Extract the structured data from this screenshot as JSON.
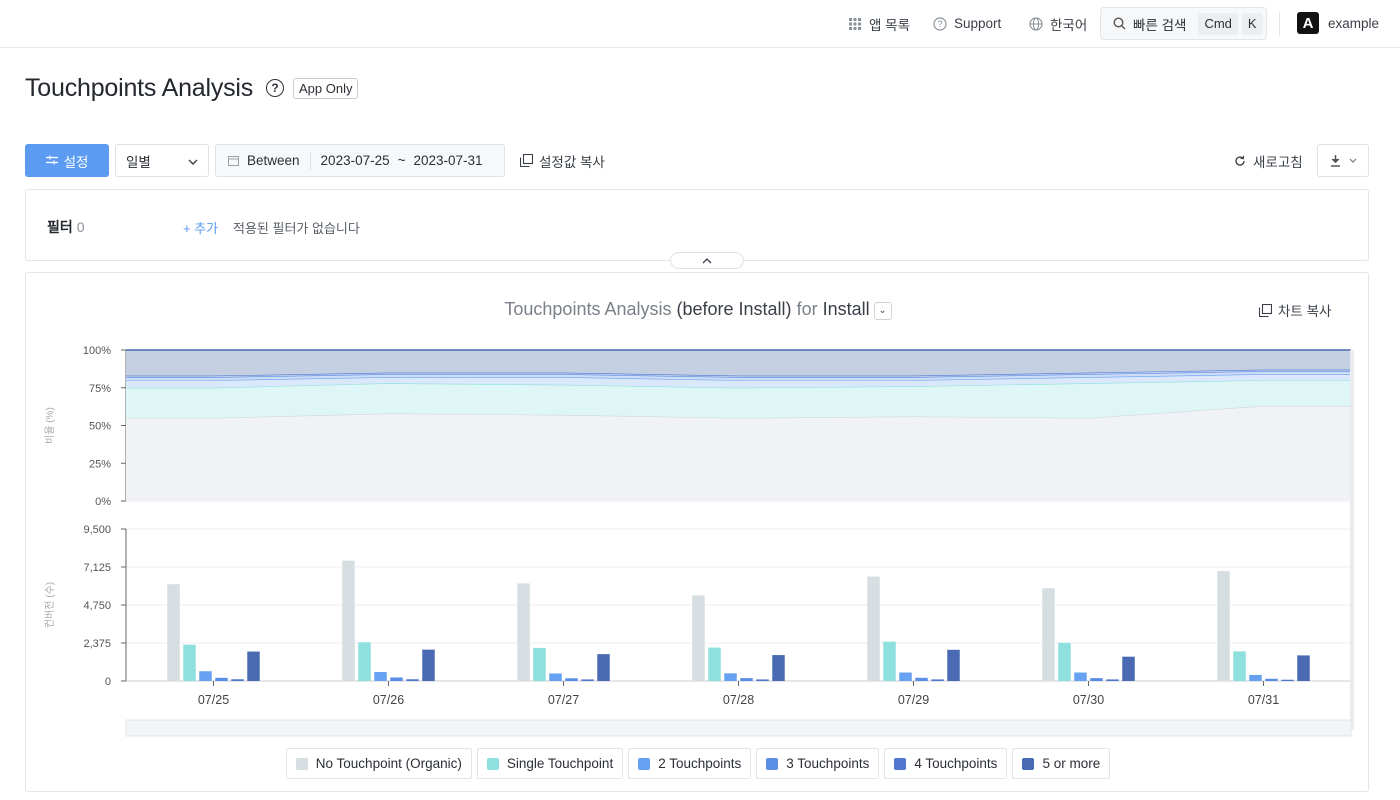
{
  "topbar": {
    "app_list": "앱 목록",
    "support": "Support",
    "language": "한국어",
    "quick_search": "빠른 검색",
    "shortcut_mod": "Cmd",
    "shortcut_key": "K",
    "logo_letter": "A",
    "account": "example"
  },
  "page": {
    "title": "Touchpoints Analysis",
    "badge": "App Only"
  },
  "toolbar": {
    "settings": "설정",
    "period": "일별",
    "range_mode": "Between",
    "start_date": "2023-07-25",
    "tilde": "~",
    "end_date": "2023-07-31",
    "copy_settings": "설정값 복사",
    "refresh": "새로고침"
  },
  "filter": {
    "label": "필터",
    "count": "0",
    "add": "+ 추가",
    "empty": "적용된 필터가 없습니다"
  },
  "chart_header": {
    "title_part1": "Touchpoints Analysis ",
    "title_part2": "(before Install)",
    "title_part3": " for ",
    "title_part4": "Install",
    "copy": "차트 복사"
  },
  "colors": {
    "organic": "#d7dee2",
    "single": "#8de0dd",
    "two": "#66a1f2",
    "three": "#5a8ee6",
    "four": "#5078d0",
    "five": "#4a6bb3"
  },
  "chart_data": [
    {
      "type": "area",
      "stacked": true,
      "percent": true,
      "ylabel": "비율 (%)",
      "yticks": [
        "100%",
        "75%",
        "50%",
        "25%",
        "0%"
      ],
      "ylim": [
        0,
        100
      ],
      "categories": [
        "07/25",
        "07/26",
        "07/27",
        "07/28",
        "07/29",
        "07/30",
        "07/31"
      ],
      "series": [
        {
          "name": "No Touchpoint (Organic)",
          "values": [
            55,
            58,
            57,
            55,
            56,
            55,
            63
          ]
        },
        {
          "name": "Single Touchpoint",
          "values": [
            20,
            20,
            20,
            20,
            20,
            23,
            17
          ]
        },
        {
          "name": "2 Touchpoints",
          "values": [
            5,
            4,
            5,
            5,
            4,
            4,
            4
          ]
        },
        {
          "name": "3 Touchpoints",
          "values": [
            2,
            2,
            2,
            2,
            2,
            2,
            2
          ]
        },
        {
          "name": "4 Touchpoints",
          "values": [
            1,
            1,
            1,
            1,
            1,
            1,
            1
          ]
        },
        {
          "name": "5 or more",
          "values": [
            17,
            15,
            15,
            17,
            17,
            15,
            13
          ]
        }
      ]
    },
    {
      "type": "bar",
      "ylabel": "컨버전 (수)",
      "yticks": [
        "9,500",
        "7,125",
        "4,750",
        "2,375",
        "0"
      ],
      "ylim": [
        0,
        9500
      ],
      "categories": [
        "07/25",
        "07/26",
        "07/27",
        "07/28",
        "07/29",
        "07/30",
        "07/31"
      ],
      "series": [
        {
          "name": "No Touchpoint (Organic)",
          "values": [
            6050,
            7520,
            6100,
            5350,
            6530,
            5800,
            6870
          ]
        },
        {
          "name": "Single Touchpoint",
          "values": [
            2270,
            2420,
            2070,
            2090,
            2460,
            2380,
            1850
          ]
        },
        {
          "name": "2 Touchpoints",
          "values": [
            610,
            560,
            470,
            480,
            530,
            530,
            380
          ]
        },
        {
          "name": "3 Touchpoints",
          "values": [
            200,
            220,
            170,
            180,
            200,
            180,
            140
          ]
        },
        {
          "name": "4 Touchpoints",
          "values": [
            110,
            110,
            100,
            100,
            100,
            100,
            80
          ]
        },
        {
          "name": "5 or more",
          "values": [
            1840,
            1960,
            1680,
            1620,
            1950,
            1520,
            1600
          ]
        }
      ]
    }
  ]
}
